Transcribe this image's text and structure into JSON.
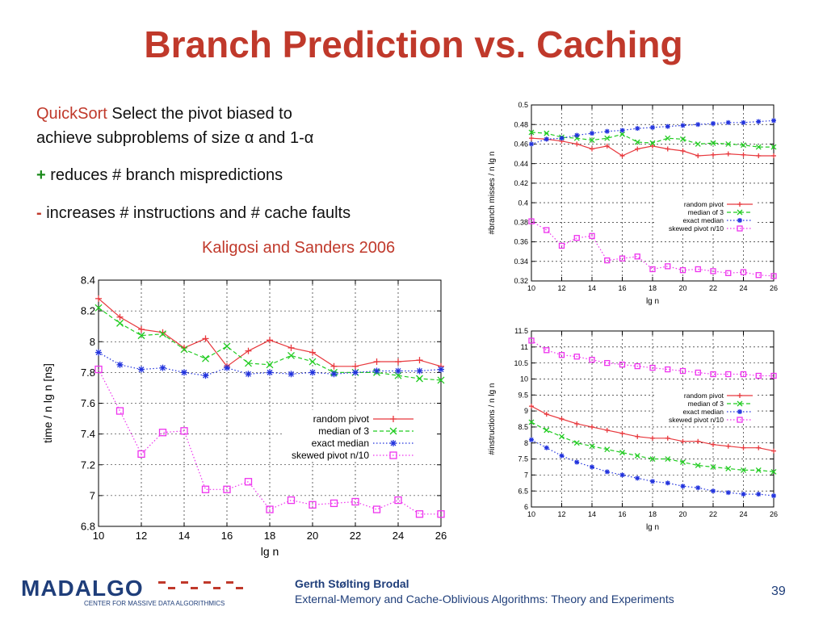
{
  "slide": {
    "title": "Branch Prediction vs. Caching",
    "para1_lead": "QuickSort",
    "para1_rest": "  Select the pivot biased to",
    "para1_line2": "achieve subproblems of size α and 1-α",
    "plus_mark": "+",
    "plus_text": " reduces # branch mispredictions",
    "minus_mark": "-",
    "minus_text": " increases # instructions and # cache faults",
    "reference": "Kaligosi and Sanders 2006",
    "page_number": "39"
  },
  "footer": {
    "logo_text": "MADALGO",
    "logo_subtext": "CENTER FOR MASSIVE DATA ALGORITHMICS",
    "author": "Gerth Stølting Brodal",
    "course": "External-Memory and Cache-Oblivious Algorithms: Theory and Experiments"
  },
  "chart_data": [
    {
      "id": "time",
      "type": "line",
      "xlabel": "lg n",
      "ylabel": "time / n lg n [ns]",
      "xlim": [
        10,
        26
      ],
      "ylim": [
        6.8,
        8.4
      ],
      "xticks": [
        10,
        12,
        14,
        16,
        18,
        20,
        22,
        24,
        26
      ],
      "yticks": [
        6.8,
        7,
        7.2,
        7.4,
        7.6,
        7.8,
        8,
        8.2,
        8.4
      ],
      "grid": true,
      "legend": "center-right",
      "x": [
        10,
        11,
        12,
        13,
        14,
        15,
        16,
        17,
        18,
        19,
        20,
        21,
        22,
        23,
        24,
        25,
        26
      ],
      "series": [
        {
          "name": "random pivot",
          "color": "#e8383d",
          "marker": "plus",
          "dash": "solid",
          "values": [
            8.28,
            8.16,
            8.08,
            8.06,
            7.96,
            8.02,
            7.84,
            7.94,
            8.01,
            7.96,
            7.93,
            7.84,
            7.84,
            7.87,
            7.87,
            7.88,
            7.84
          ]
        },
        {
          "name": "median of 3",
          "color": "#22cc22",
          "marker": "x",
          "dash": "dashed",
          "values": [
            8.22,
            8.12,
            8.04,
            8.05,
            7.95,
            7.89,
            7.97,
            7.86,
            7.85,
            7.91,
            7.87,
            7.8,
            7.8,
            7.8,
            7.78,
            7.76,
            7.75
          ]
        },
        {
          "name": "exact median",
          "color": "#2233dd",
          "marker": "star",
          "dash": "dotted",
          "values": [
            7.93,
            7.85,
            7.82,
            7.83,
            7.8,
            7.78,
            7.83,
            7.79,
            7.8,
            7.79,
            7.8,
            7.79,
            7.8,
            7.81,
            7.81,
            7.81,
            7.82
          ]
        },
        {
          "name": "skewed pivot n/10",
          "color": "#ee33ee",
          "marker": "square",
          "dash": "dotted",
          "values": [
            7.82,
            7.55,
            7.27,
            7.41,
            7.42,
            7.04,
            7.04,
            7.09,
            6.91,
            6.97,
            6.94,
            6.95,
            6.96,
            6.91,
            6.97,
            6.88,
            6.88
          ]
        }
      ]
    },
    {
      "id": "branch",
      "type": "line",
      "xlabel": "lg n",
      "ylabel": "#branch misses / n lg n",
      "xlim": [
        10,
        26
      ],
      "ylim": [
        0.32,
        0.5
      ],
      "xticks": [
        10,
        12,
        14,
        16,
        18,
        20,
        22,
        24,
        26
      ],
      "yticks": [
        0.32,
        0.34,
        0.36,
        0.38,
        0.4,
        0.42,
        0.44,
        0.46,
        0.48,
        0.5
      ],
      "grid": true,
      "legend": "center-right",
      "x": [
        10,
        11,
        12,
        13,
        14,
        15,
        16,
        17,
        18,
        19,
        20,
        21,
        22,
        23,
        24,
        25,
        26
      ],
      "series": [
        {
          "name": "random pivot",
          "color": "#e8383d",
          "marker": "plus",
          "dash": "solid",
          "values": [
            0.466,
            0.465,
            0.463,
            0.46,
            0.455,
            0.458,
            0.448,
            0.455,
            0.458,
            0.455,
            0.453,
            0.448,
            0.449,
            0.45,
            0.449,
            0.448,
            0.448
          ]
        },
        {
          "name": "median of 3",
          "color": "#22cc22",
          "marker": "x",
          "dash": "dashed",
          "values": [
            0.472,
            0.471,
            0.467,
            0.466,
            0.464,
            0.466,
            0.47,
            0.462,
            0.461,
            0.466,
            0.465,
            0.46,
            0.461,
            0.46,
            0.459,
            0.457,
            0.457
          ]
        },
        {
          "name": "exact median",
          "color": "#2233dd",
          "marker": "star",
          "dash": "dotted",
          "values": [
            0.46,
            0.465,
            0.466,
            0.469,
            0.471,
            0.473,
            0.474,
            0.476,
            0.477,
            0.478,
            0.479,
            0.48,
            0.481,
            0.482,
            0.482,
            0.483,
            0.484
          ]
        },
        {
          "name": "skewed pivot n/10",
          "color": "#ee33ee",
          "marker": "square",
          "dash": "dotted",
          "values": [
            0.381,
            0.372,
            0.356,
            0.364,
            0.366,
            0.341,
            0.343,
            0.345,
            0.332,
            0.335,
            0.331,
            0.332,
            0.33,
            0.328,
            0.329,
            0.326,
            0.325
          ]
        }
      ]
    },
    {
      "id": "instructions",
      "type": "line",
      "xlabel": "lg n",
      "ylabel": "#instructions / n lg n",
      "xlim": [
        10,
        26
      ],
      "ylim": [
        6,
        11.5
      ],
      "xticks": [
        10,
        12,
        14,
        16,
        18,
        20,
        22,
        24,
        26
      ],
      "yticks": [
        6,
        6.5,
        7,
        7.5,
        8,
        8.5,
        9,
        9.5,
        10,
        10.5,
        11,
        11.5
      ],
      "grid": true,
      "legend": "center-right",
      "x": [
        10,
        11,
        12,
        13,
        14,
        15,
        16,
        17,
        18,
        19,
        20,
        21,
        22,
        23,
        24,
        25,
        26
      ],
      "series": [
        {
          "name": "random pivot",
          "color": "#e8383d",
          "marker": "plus",
          "dash": "solid",
          "values": [
            9.15,
            8.9,
            8.75,
            8.6,
            8.5,
            8.4,
            8.3,
            8.2,
            8.15,
            8.15,
            8.05,
            8.05,
            7.95,
            7.9,
            7.85,
            7.85,
            7.75
          ]
        },
        {
          "name": "median of 3",
          "color": "#22cc22",
          "marker": "x",
          "dash": "dashed",
          "values": [
            8.65,
            8.4,
            8.2,
            8.0,
            7.9,
            7.8,
            7.7,
            7.6,
            7.5,
            7.5,
            7.4,
            7.3,
            7.25,
            7.2,
            7.15,
            7.15,
            7.1
          ]
        },
        {
          "name": "exact median",
          "color": "#2233dd",
          "marker": "star",
          "dash": "dotted",
          "values": [
            8.1,
            7.85,
            7.6,
            7.4,
            7.25,
            7.1,
            7.0,
            6.9,
            6.8,
            6.75,
            6.65,
            6.6,
            6.5,
            6.45,
            6.4,
            6.4,
            6.35
          ]
        },
        {
          "name": "skewed pivot n/10",
          "color": "#ee33ee",
          "marker": "square",
          "dash": "dotted",
          "values": [
            11.2,
            10.9,
            10.75,
            10.7,
            10.6,
            10.5,
            10.45,
            10.4,
            10.35,
            10.3,
            10.25,
            10.2,
            10.15,
            10.15,
            10.15,
            10.1,
            10.1
          ]
        }
      ]
    }
  ]
}
